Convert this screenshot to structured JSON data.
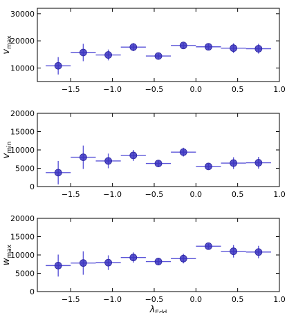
{
  "chart_data": [
    {
      "type": "scatter",
      "ylabel": "v",
      "ylabel_sub": "max",
      "xlim": [
        -1.9,
        1.0
      ],
      "ylim": [
        5000,
        32000
      ],
      "yticks": [
        10000,
        20000,
        30000
      ],
      "xticks": [
        -1.5,
        -1.0,
        -0.5,
        0.0,
        0.5,
        1.0
      ],
      "xtick_labels": [
        "−1.5",
        "−1.0",
        "−0.5",
        "0.0",
        "0.5",
        "1.0"
      ],
      "x_half_width": 0.15,
      "marker_color": "#3a33bf",
      "error_color": "#5b55d8",
      "series": [
        {
          "x": [
            -1.65,
            -1.35,
            -1.05,
            -0.75,
            -0.45,
            -0.15,
            0.15,
            0.45,
            0.75
          ],
          "y": [
            10800,
            15700,
            14800,
            17700,
            14400,
            18300,
            17800,
            17300,
            17100
          ],
          "yerr": [
            3200,
            3200,
            2000,
            1500,
            1000,
            1000,
            1100,
            1800,
            1800
          ]
        }
      ]
    },
    {
      "type": "scatter",
      "ylabel": "v",
      "ylabel_sub": "min",
      "xlim": [
        -1.9,
        1.0
      ],
      "ylim": [
        0,
        20000
      ],
      "yticks": [
        0,
        5000,
        10000,
        15000,
        20000
      ],
      "xticks": [
        -1.5,
        -1.0,
        -0.5,
        0.0,
        0.5,
        1.0
      ],
      "xtick_labels": [
        "−1.5",
        "−1.0",
        "−0.5",
        "0.0",
        "0.5",
        "1.0"
      ],
      "x_half_width": 0.15,
      "marker_color": "#3a33bf",
      "error_color": "#5b55d8",
      "series": [
        {
          "x": [
            -1.65,
            -1.35,
            -1.05,
            -0.75,
            -0.45,
            -0.15,
            0.15,
            0.45,
            0.75
          ],
          "y": [
            3800,
            8000,
            7000,
            8500,
            6300,
            9400,
            5500,
            6400,
            6500
          ],
          "yerr": [
            3200,
            3200,
            2000,
            1500,
            900,
            1200,
            800,
            1600,
            1600
          ]
        }
      ]
    },
    {
      "type": "scatter",
      "ylabel": "w",
      "ylabel_sub": "max",
      "xlabel": "λ",
      "xlabel_sub": "Edd",
      "xlim": [
        -1.9,
        1.0
      ],
      "ylim": [
        0,
        20000
      ],
      "yticks": [
        0,
        5000,
        10000,
        15000,
        20000
      ],
      "xticks": [
        -1.5,
        -1.0,
        -0.5,
        0.0,
        0.5,
        1.0
      ],
      "xtick_labels": [
        "−1.5",
        "−1.0",
        "−0.5",
        "0.0",
        "0.5",
        "1.0"
      ],
      "x_half_width": 0.15,
      "marker_color": "#3a33bf",
      "error_color": "#5b55d8",
      "series": [
        {
          "x": [
            -1.65,
            -1.35,
            -1.05,
            -0.75,
            -0.45,
            -0.15,
            0.15,
            0.45,
            0.75
          ],
          "y": [
            7100,
            7800,
            7900,
            9300,
            8200,
            9000,
            12400,
            11000,
            10800
          ],
          "yerr": [
            3000,
            3200,
            2000,
            1400,
            1000,
            1300,
            700,
            1700,
            1700
          ]
        }
      ]
    }
  ]
}
